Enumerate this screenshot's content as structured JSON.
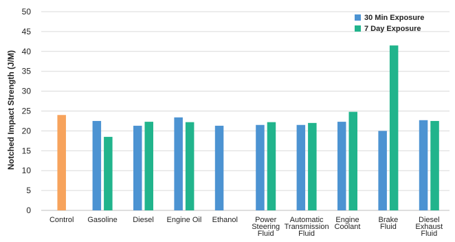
{
  "chart_data": {
    "type": "bar",
    "ylabel": "Notched Impact Strength (J/M)",
    "ylim": [
      0,
      50
    ],
    "yticks": [
      0,
      5,
      10,
      15,
      20,
      25,
      30,
      35,
      40,
      45,
      50
    ],
    "grid": true,
    "legend_position": "top-right",
    "categories": [
      [
        "Control"
      ],
      [
        "Gasoline"
      ],
      [
        "Diesel"
      ],
      [
        "Engine Oil"
      ],
      [
        "Ethanol"
      ],
      [
        "Power",
        "Steering",
        "Fluid"
      ],
      [
        "Automatic",
        "Transmission",
        "Fluid"
      ],
      [
        "Engine",
        "Coolant"
      ],
      [
        "Brake",
        "Fluid"
      ],
      [
        "Diesel",
        "Exhaust",
        "Fluid"
      ]
    ],
    "control": {
      "value": 24.0,
      "color": "#F7A35C"
    },
    "series": [
      {
        "name": "30 Min Exposure",
        "color": "#4C93D2",
        "values": [
          null,
          22.5,
          21.3,
          23.4,
          21.3,
          21.5,
          21.5,
          22.3,
          20.0,
          22.7
        ]
      },
      {
        "name": "7 Day Exposure",
        "color": "#21B48C",
        "values": [
          null,
          18.5,
          22.3,
          22.2,
          null,
          22.2,
          22.0,
          24.8,
          41.5,
          22.5
        ]
      }
    ]
  }
}
